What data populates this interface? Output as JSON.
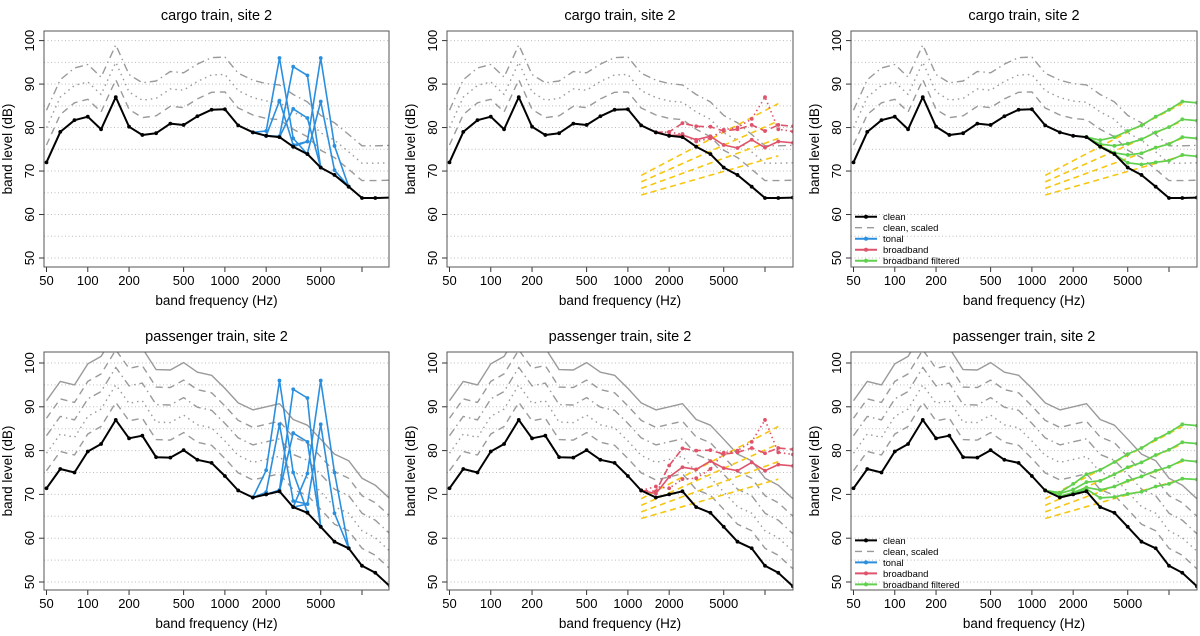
{
  "chart_data": [
    {
      "type": "line",
      "title": "cargo train, site 2",
      "xlabel": "band frequency (Hz)",
      "ylabel": "band level (dB)",
      "xscale": "log",
      "xlim": [
        48,
        19000
      ],
      "ylim": [
        48,
        102
      ],
      "xticks": [
        50,
        100,
        200,
        500,
        1000,
        2000,
        5000,
        10000
      ],
      "xtick_labels": [
        "50",
        "100",
        "200",
        "500",
        "1000",
        "2000",
        "5000",
        ""
      ],
      "yticks": [
        50,
        60,
        70,
        80,
        90,
        100
      ],
      "grid": "horizontal dotted every 5 dB",
      "variant": "tonal",
      "legend": null
    },
    {
      "type": "line",
      "title": "cargo train, site 2",
      "xlabel": "band frequency (Hz)",
      "ylabel": "band level (dB)",
      "xscale": "log",
      "xlim": [
        48,
        19000
      ],
      "ylim": [
        48,
        102
      ],
      "xticks": [
        50,
        100,
        200,
        500,
        1000,
        2000,
        5000,
        10000
      ],
      "xtick_labels": [
        "50",
        "100",
        "200",
        "500",
        "1000",
        "2000",
        "5000",
        ""
      ],
      "yticks": [
        50,
        60,
        70,
        80,
        90,
        100
      ],
      "grid": "horizontal dotted every 5 dB",
      "variant": "broadband",
      "legend": null
    },
    {
      "type": "line",
      "title": "cargo train, site 2",
      "xlabel": "band frequency (Hz)",
      "ylabel": "band level (dB)",
      "xscale": "log",
      "xlim": [
        48,
        19000
      ],
      "ylim": [
        48,
        102
      ],
      "xticks": [
        50,
        100,
        200,
        500,
        1000,
        2000,
        5000,
        10000
      ],
      "xtick_labels": [
        "50",
        "100",
        "200",
        "500",
        "1000",
        "2000",
        "5000",
        ""
      ],
      "yticks": [
        50,
        60,
        70,
        80,
        90,
        100
      ],
      "grid": "horizontal dotted every 5 dB",
      "variant": "filtered",
      "legend": "bottom-left"
    },
    {
      "type": "line",
      "title": "passenger train, site 2",
      "xlabel": "band frequency (Hz)",
      "ylabel": "band level (dB)",
      "xscale": "log",
      "xlim": [
        48,
        19000
      ],
      "ylim": [
        48,
        102
      ],
      "xticks": [
        50,
        100,
        200,
        500,
        1000,
        2000,
        5000,
        10000
      ],
      "xtick_labels": [
        "50",
        "100",
        "200",
        "500",
        "1000",
        "2000",
        "5000",
        ""
      ],
      "yticks": [
        50,
        60,
        70,
        80,
        90,
        100
      ],
      "grid": "horizontal dotted every 5 dB",
      "variant": "tonal",
      "legend": null
    },
    {
      "type": "line",
      "title": "passenger train, site 2",
      "xlabel": "band frequency (Hz)",
      "ylabel": "band level (dB)",
      "xscale": "log",
      "xlim": [
        48,
        19000
      ],
      "ylim": [
        48,
        102
      ],
      "xticks": [
        50,
        100,
        200,
        500,
        1000,
        2000,
        5000,
        10000
      ],
      "xtick_labels": [
        "50",
        "100",
        "200",
        "500",
        "1000",
        "2000",
        "5000",
        ""
      ],
      "yticks": [
        50,
        60,
        70,
        80,
        90,
        100
      ],
      "grid": "horizontal dotted every 5 dB",
      "variant": "broadband",
      "legend": null
    },
    {
      "type": "line",
      "title": "passenger train, site 2",
      "xlabel": "band frequency (Hz)",
      "ylabel": "band level (dB)",
      "xscale": "log",
      "xlim": [
        48,
        19000
      ],
      "ylim": [
        48,
        102
      ],
      "xticks": [
        50,
        100,
        200,
        500,
        1000,
        2000,
        5000,
        10000
      ],
      "xtick_labels": [
        "50",
        "100",
        "200",
        "500",
        "1000",
        "2000",
        "5000",
        ""
      ],
      "yticks": [
        50,
        60,
        70,
        80,
        90,
        100
      ],
      "grid": "horizontal dotted every 5 dB",
      "variant": "filtered",
      "legend": "bottom-left"
    }
  ],
  "bands": [
    50,
    63,
    80,
    100,
    125,
    160,
    200,
    250,
    315,
    400,
    500,
    630,
    800,
    1000,
    1250,
    1600,
    2000,
    2500,
    3150,
    4000,
    5000,
    6300,
    8000,
    10000,
    12500,
    16000
  ],
  "datasets": {
    "cargo": {
      "clean": [
        72,
        79,
        81.7,
        82.5,
        79.6,
        87,
        80.2,
        78.3,
        78.7,
        80.9,
        80.6,
        82.6,
        84.1,
        84.2,
        80.5,
        78.9,
        78.1,
        77.8,
        75.6,
        73.9,
        70.8,
        69.1,
        66.4,
        63.8,
        63.8,
        63.9
      ],
      "scaled_offsets_db": [
        4,
        8,
        12
      ],
      "tonal": [
        {
          "bands": [
            1600,
            2000,
            2500,
            3150,
            4000
          ],
          "values": [
            78.9,
            79.2,
            96,
            77.5,
            73.9
          ]
        },
        {
          "bands": [
            1600,
            2000,
            2500,
            3150,
            4000
          ],
          "values": [
            78.9,
            78.1,
            86.2,
            76,
            76.8
          ]
        },
        {
          "bands": [
            2000,
            2500,
            3150,
            4000,
            5000
          ],
          "values": [
            78.1,
            78,
            94,
            92,
            70.8
          ]
        },
        {
          "bands": [
            2000,
            2500,
            3150,
            4000,
            5000
          ],
          "values": [
            78.1,
            77.8,
            84.3,
            82.2,
            70.8
          ]
        },
        {
          "bands": [
            3150,
            4000,
            5000,
            6300,
            8000
          ],
          "values": [
            75.6,
            76.8,
            96,
            75.8,
            66.4
          ]
        },
        {
          "bands": [
            3150,
            4000,
            5000,
            6300,
            8000
          ],
          "values": [
            75.6,
            74,
            86,
            70.2,
            66.4
          ]
        }
      ],
      "broadband": [
        {
          "style": "solid",
          "values": [
            78.9,
            78.2,
            78.3,
            77.2,
            78,
            76,
            75.3,
            77.2,
            75.4,
            76.8,
            76.5
          ]
        },
        {
          "style": "dashed",
          "values": [
            78.9,
            79,
            81,
            80.3,
            80.2,
            79.2,
            79.6,
            80.6,
            79.2,
            80.6,
            80.3
          ]
        },
        {
          "style": "dotted",
          "values": [
            78.9,
            78.9,
            78.5,
            76.8,
            77.5,
            79.5,
            80,
            82,
            87,
            79.6,
            79.1
          ]
        }
      ],
      "broadband_bands": [
        1600,
        2000,
        2500,
        3150,
        4000,
        5000,
        6300,
        8000,
        10000,
        12500,
        16000
      ],
      "filtered": [
        {
          "values": [
            77.8,
            77.1,
            77.8,
            79.2,
            80.5,
            82.5,
            84.1,
            86,
            85.7
          ]
        },
        {
          "values": [
            77.8,
            76.2,
            75.8,
            76.3,
            77.3,
            78.9,
            80.1,
            81.9,
            81.6
          ]
        },
        {
          "values": [
            77.8,
            75.7,
            74.2,
            73.7,
            74.1,
            75.4,
            76.2,
            77.8,
            77.5
          ]
        },
        {
          "values": [
            77.8,
            75.6,
            73.9,
            71.9,
            71.5,
            72,
            72.4,
            73.7,
            73.4
          ]
        }
      ],
      "filtered_bands": [
        2500,
        3150,
        4000,
        5000,
        6300,
        8000,
        10000,
        12500,
        16000
      ]
    },
    "passenger": {
      "clean": [
        71.4,
        75.8,
        75,
        79.8,
        81.5,
        87,
        82.8,
        83.4,
        78.5,
        78.4,
        80.1,
        77.9,
        77.2,
        74.2,
        70.9,
        69.3,
        70,
        70.7,
        67.1,
        65.8,
        62.6,
        59.2,
        57.7,
        53.7,
        52.1,
        49
      ],
      "scaled_offsets_db": [
        4,
        8,
        12,
        16,
        20
      ],
      "tonal": [
        {
          "bands": [
            1600,
            2000,
            2500,
            3150,
            4000
          ],
          "values": [
            69.3,
            75.5,
            96,
            75,
            66
          ]
        },
        {
          "bands": [
            1600,
            2000,
            2500,
            3150,
            4000
          ],
          "values": [
            69.3,
            70.5,
            86,
            68.5,
            67.8
          ]
        },
        {
          "bands": [
            2000,
            2500,
            3150,
            4000,
            5000
          ],
          "values": [
            70,
            71,
            94,
            92,
            62.6
          ]
        },
        {
          "bands": [
            2000,
            2500,
            3150,
            4000,
            5000
          ],
          "values": [
            70,
            70.7,
            84,
            82,
            62.6
          ]
        },
        {
          "bands": [
            3150,
            4000,
            5000,
            6300,
            8000
          ],
          "values": [
            67.1,
            74.8,
            96,
            75,
            57.7
          ]
        },
        {
          "bands": [
            3150,
            4000,
            5000,
            6300,
            8000
          ],
          "values": [
            67.1,
            67.8,
            86,
            65.7,
            57.7
          ]
        }
      ],
      "broadband": [
        {
          "style": "solid",
          "values": [
            70.9,
            70.2,
            74,
            76.2,
            75.7,
            77.6,
            76,
            75.4,
            77.3,
            75.4,
            76.8,
            76.5
          ]
        },
        {
          "style": "dashed",
          "values": [
            70.9,
            70.7,
            76.6,
            80.5,
            80,
            80.1,
            79.2,
            79.6,
            80.6,
            79.4,
            80.6,
            80.3
          ]
        },
        {
          "style": "dotted",
          "values": [
            70.9,
            71.8,
            71.4,
            73.5,
            73.7,
            75.8,
            79.5,
            80,
            82,
            87,
            79.6,
            79.1
          ]
        }
      ],
      "broadband_bands": [
        1250,
        1600,
        2000,
        2500,
        3150,
        4000,
        5000,
        6300,
        8000,
        10000,
        12500,
        16000
      ],
      "filtered": [
        {
          "values": [
            70.9,
            70.4,
            72.4,
            74.6,
            75.6,
            77.4,
            79.2,
            80.6,
            82.6,
            84.1,
            86,
            85.7
          ]
        },
        {
          "values": [
            70.9,
            70.2,
            71.1,
            72.8,
            73.1,
            74.6,
            76.2,
            77.3,
            79,
            80.2,
            81.9,
            81.6
          ]
        },
        {
          "values": [
            70.9,
            69.6,
            70.4,
            71.6,
            71,
            71.8,
            73.1,
            74.1,
            75.4,
            76.3,
            77.8,
            77.5
          ]
        },
        {
          "values": [
            70.9,
            69.4,
            70.1,
            71.2,
            69.2,
            69.4,
            70.1,
            70.6,
            71.8,
            72.4,
            73.6,
            73.4
          ]
        }
      ],
      "filtered_bands": [
        1250,
        1600,
        2000,
        2500,
        3150,
        4000,
        5000,
        6300,
        8000,
        10000,
        12500,
        16000
      ]
    },
    "noise_floor": {
      "bands": [
        1250,
        12500
      ],
      "lines": [
        [
          64.5,
          73.5
        ],
        [
          66,
          77.5
        ],
        [
          67.5,
          81.5
        ],
        [
          69,
          85.5
        ]
      ]
    }
  },
  "legend": {
    "items": [
      {
        "label": "clean",
        "color": "#000000",
        "style": "solid-marker"
      },
      {
        "label": "clean, scaled",
        "color": "#999999",
        "style": "dashed"
      },
      {
        "label": "tonal",
        "color": "#2b8fde",
        "style": "solid-marker"
      },
      {
        "label": "broadband",
        "color": "#df536b",
        "style": "solid-marker"
      },
      {
        "label": "broadband filtered",
        "color": "#61d04f",
        "style": "solid-marker"
      }
    ]
  },
  "colors": {
    "clean": "#000000",
    "scaled": "#9a9a9a",
    "tonal": "#2b8fde",
    "broadband": "#df536b",
    "filtered": "#61d04f",
    "noise": "#f5c710",
    "grid": "#bdbdbd",
    "frame": "#555555"
  }
}
